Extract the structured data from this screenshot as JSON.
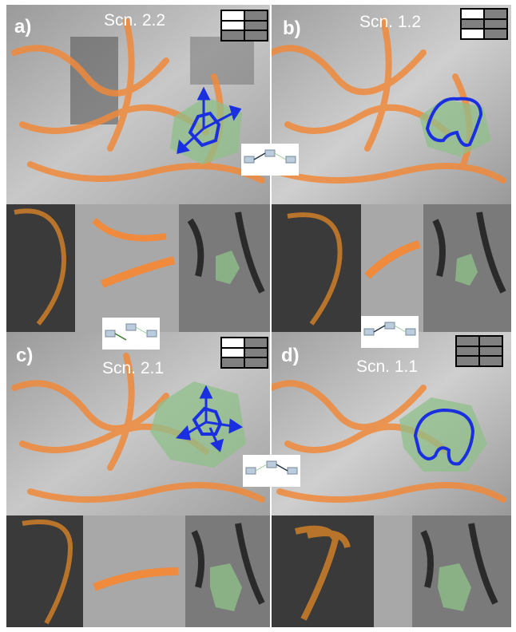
{
  "panels": [
    {
      "id": "a",
      "letter": "a)",
      "scenario": "Scn. 2.2",
      "grid": [
        "w",
        "g",
        "w",
        "g",
        "g",
        "g"
      ],
      "arrows": true,
      "contour": "hex"
    },
    {
      "id": "b",
      "letter": "b)",
      "scenario": "Scn. 1.2",
      "grid": [
        "w",
        "g",
        "g",
        "g",
        "w",
        "g"
      ],
      "arrows": false,
      "contour": "irregular"
    },
    {
      "id": "c",
      "letter": "c)",
      "scenario": "Scn. 2.1",
      "grid": [
        "w",
        "w",
        "w",
        "g",
        "g",
        "g"
      ],
      "arrows": true,
      "contour": "hex"
    },
    {
      "id": "d",
      "letter": "d)",
      "scenario": "Scn. 1.1",
      "grid": [
        "g",
        "g",
        "g",
        "g",
        "g",
        "g"
      ],
      "arrows": false,
      "contour": "irregular"
    }
  ],
  "colors": {
    "tract_orange": "#f08a3c",
    "roi_green": "#8fbf8a",
    "contour_blue": "#1a2fe0",
    "arrow_blue": "#1a2fe0",
    "grid_white": "#ffffff",
    "grid_gray": "#808080",
    "fiber_brown": "#b8742a"
  }
}
